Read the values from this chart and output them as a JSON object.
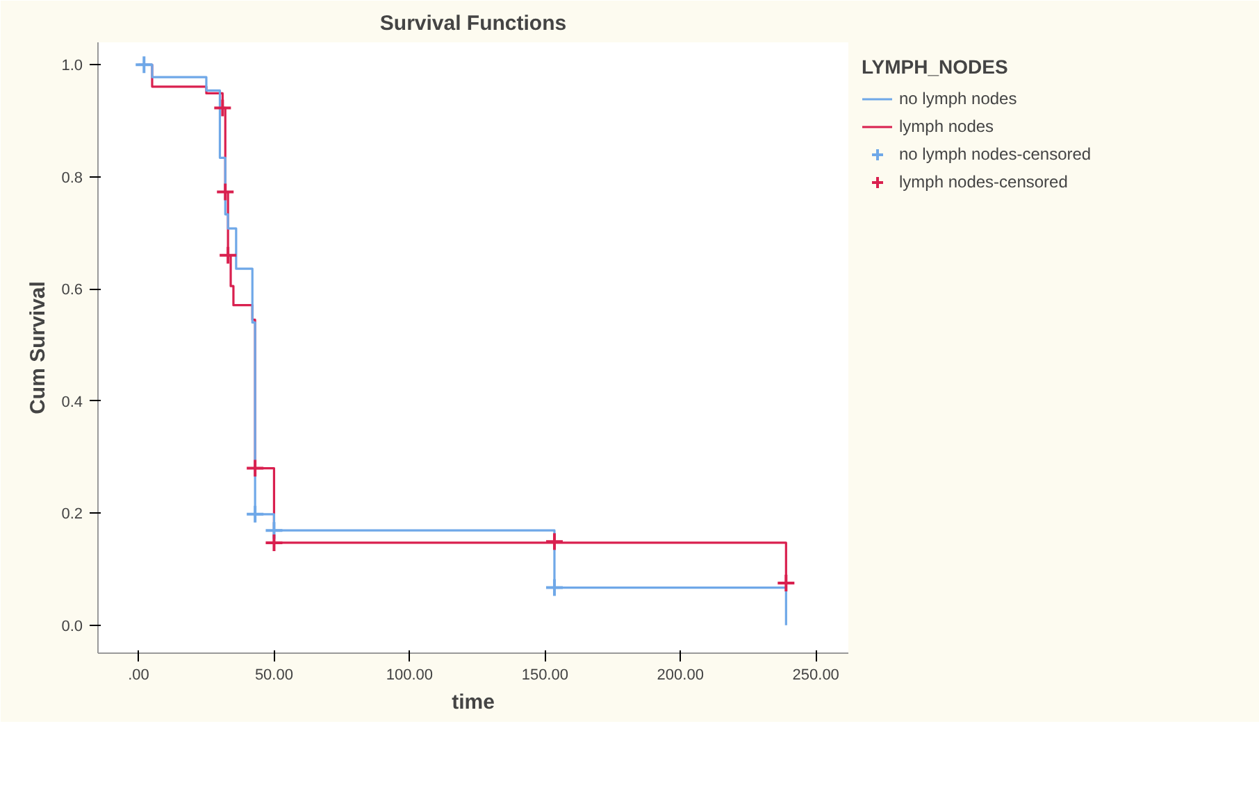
{
  "chart_data": {
    "type": "step",
    "title": "Survival Functions",
    "xlabel": "time",
    "ylabel": "Cum Survival",
    "legend_title": "LYMPH_NODES",
    "series": [
      {
        "name": "no lymph nodes",
        "color": "#6fa8e8",
        "x": [
          0,
          5,
          25,
          30,
          32,
          33,
          36,
          42,
          43,
          50,
          153.5,
          239
        ],
        "values": [
          1.0,
          0.978,
          0.954,
          0.834,
          0.733,
          0.708,
          0.636,
          0.54,
          0.198,
          0.169,
          0.067,
          0.0
        ]
      },
      {
        "name": "lymph nodes",
        "color": "#d9204f",
        "x": [
          0,
          5,
          25,
          31,
          32,
          33,
          34,
          35,
          42,
          43,
          50,
          239
        ],
        "values": [
          1.0,
          0.961,
          0.949,
          0.923,
          0.773,
          0.66,
          0.605,
          0.571,
          0.545,
          0.28,
          0.147,
          0.075
        ]
      },
      {
        "name": "no lymph nodes-censored",
        "type": "scatter",
        "marker": "cross",
        "color": "#6fa8e8",
        "x": [
          2,
          43,
          50,
          153.5
        ],
        "values": [
          1.0,
          0.198,
          0.169,
          0.067
        ]
      },
      {
        "name": "lymph nodes-censored",
        "type": "scatter",
        "marker": "cross",
        "color": "#d9204f",
        "x": [
          31,
          32,
          33,
          43,
          50,
          153.5,
          239
        ],
        "values": [
          0.923,
          0.773,
          0.66,
          0.28,
          0.147,
          0.149,
          0.075
        ]
      }
    ],
    "xlim": [
      -15,
      262
    ],
    "ylim": [
      -0.05,
      1.04
    ],
    "xticks": [
      {
        "value": 0,
        "label": ".00"
      },
      {
        "value": 50,
        "label": "50.00"
      },
      {
        "value": 100,
        "label": "100.00"
      },
      {
        "value": 150,
        "label": "150.00"
      },
      {
        "value": 200,
        "label": "200.00"
      },
      {
        "value": 250,
        "label": "250.00"
      }
    ],
    "yticks": [
      {
        "value": 0,
        "label": "0.0"
      },
      {
        "value": 0.2,
        "label": "0.2"
      },
      {
        "value": 0.4,
        "label": "0.4"
      },
      {
        "value": 0.6,
        "label": "0.6"
      },
      {
        "value": 0.8,
        "label": "0.8"
      },
      {
        "value": 1.0,
        "label": "1.0"
      }
    ],
    "grid": false,
    "legend": "top right"
  }
}
